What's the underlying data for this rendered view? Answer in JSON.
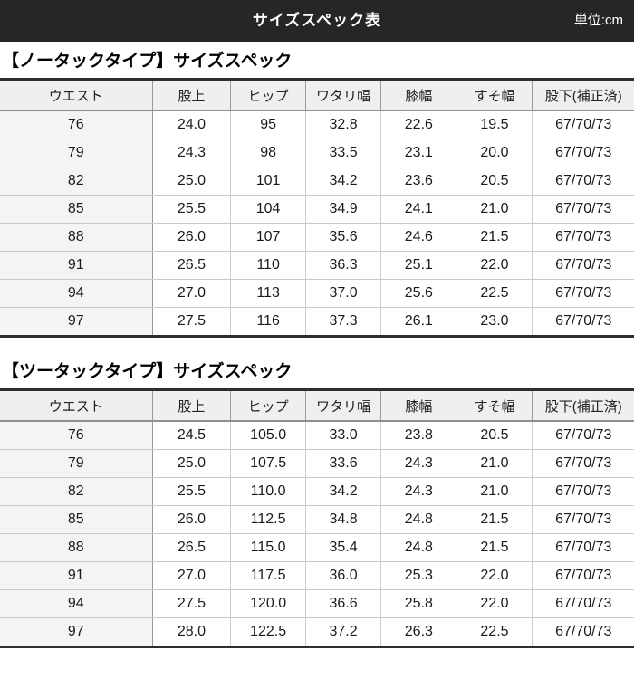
{
  "header": {
    "title": "サイズスペック表",
    "unit": "単位:cm"
  },
  "columns": [
    "ウエスト",
    "股上",
    "ヒップ",
    "ワタリ幅",
    "膝幅",
    "すそ幅",
    "股下(補正済)"
  ],
  "tables": [
    {
      "title": "【ノータックタイプ】サイズスペック",
      "rows": [
        [
          "76",
          "24.0",
          "95",
          "32.8",
          "22.6",
          "19.5",
          "67/70/73"
        ],
        [
          "79",
          "24.3",
          "98",
          "33.5",
          "23.1",
          "20.0",
          "67/70/73"
        ],
        [
          "82",
          "25.0",
          "101",
          "34.2",
          "23.6",
          "20.5",
          "67/70/73"
        ],
        [
          "85",
          "25.5",
          "104",
          "34.9",
          "24.1",
          "21.0",
          "67/70/73"
        ],
        [
          "88",
          "26.0",
          "107",
          "35.6",
          "24.6",
          "21.5",
          "67/70/73"
        ],
        [
          "91",
          "26.5",
          "110",
          "36.3",
          "25.1",
          "22.0",
          "67/70/73"
        ],
        [
          "94",
          "27.0",
          "113",
          "37.0",
          "25.6",
          "22.5",
          "67/70/73"
        ],
        [
          "97",
          "27.5",
          "116",
          "37.3",
          "26.1",
          "23.0",
          "67/70/73"
        ]
      ]
    },
    {
      "title": "【ツータックタイプ】サイズスペック",
      "rows": [
        [
          "76",
          "24.5",
          "105.0",
          "33.0",
          "23.8",
          "20.5",
          "67/70/73"
        ],
        [
          "79",
          "25.0",
          "107.5",
          "33.6",
          "24.3",
          "21.0",
          "67/70/73"
        ],
        [
          "82",
          "25.5",
          "110.0",
          "34.2",
          "24.3",
          "21.0",
          "67/70/73"
        ],
        [
          "85",
          "26.0",
          "112.5",
          "34.8",
          "24.8",
          "21.5",
          "67/70/73"
        ],
        [
          "88",
          "26.5",
          "115.0",
          "35.4",
          "24.8",
          "21.5",
          "67/70/73"
        ],
        [
          "91",
          "27.0",
          "117.5",
          "36.0",
          "25.3",
          "22.0",
          "67/70/73"
        ],
        [
          "94",
          "27.5",
          "120.0",
          "36.6",
          "25.8",
          "22.0",
          "67/70/73"
        ],
        [
          "97",
          "28.0",
          "122.5",
          "37.2",
          "26.3",
          "22.5",
          "67/70/73"
        ]
      ]
    }
  ],
  "colors": {
    "topbar_bg": "#262626",
    "topbar_text": "#ffffff",
    "header_row_bg": "#efefef",
    "first_col_bg": "#f4f4f4",
    "border_dark": "#2e2e2e",
    "border_mid": "#9a9a9a",
    "border_light": "#cccccc",
    "text": "#1a1a1a"
  }
}
